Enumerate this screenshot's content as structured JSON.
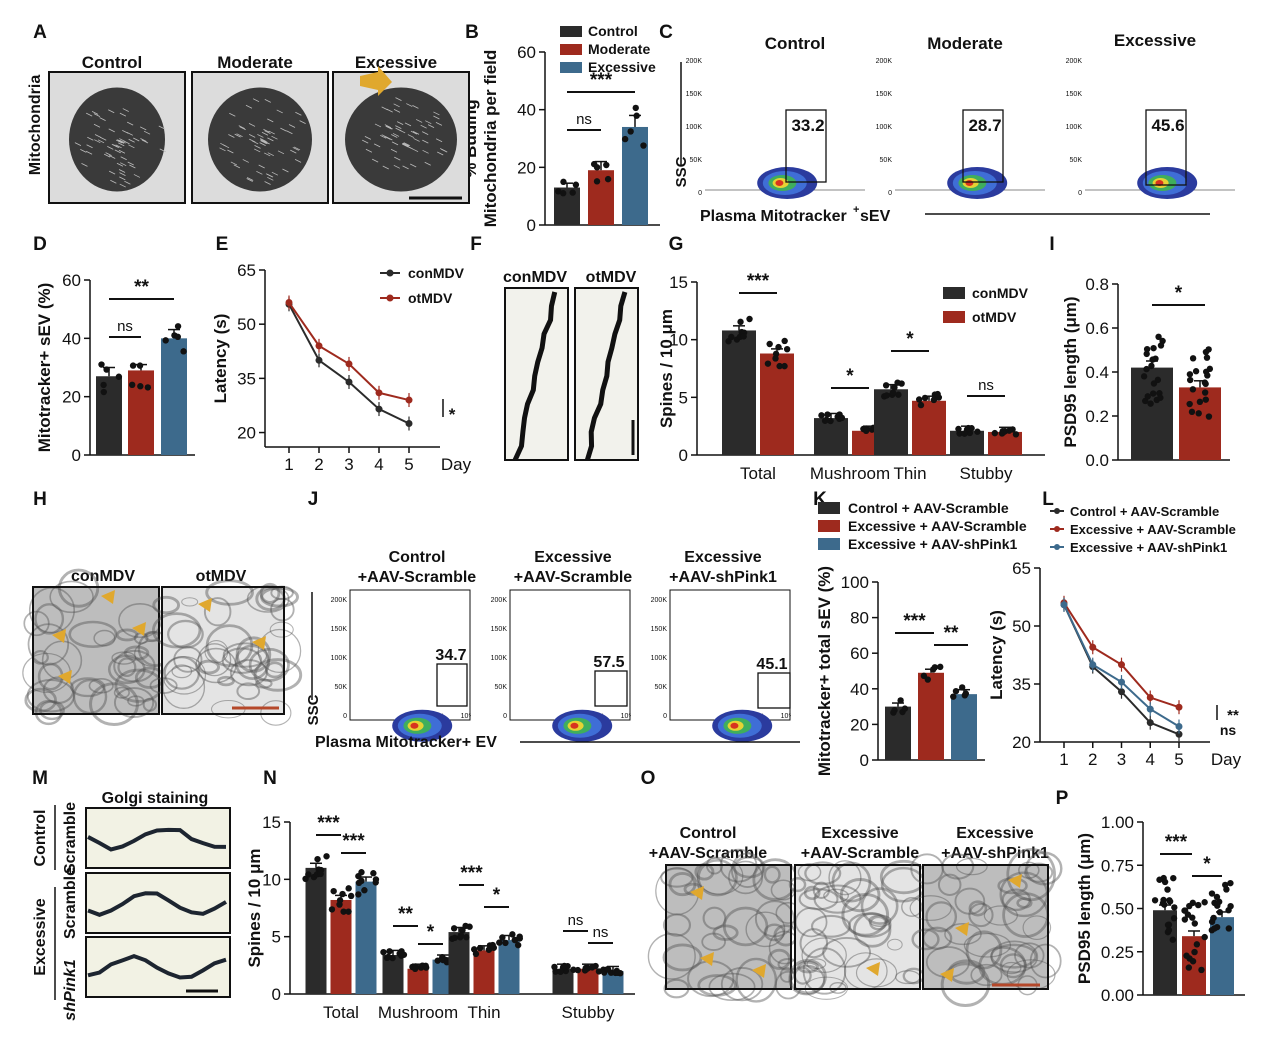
{
  "colors": {
    "control": "#2b2b2b",
    "moderate": "#9e2a1e",
    "excessive": "#3d6a8c",
    "em_bg": "#cfcfcf",
    "arrow": "#e0a82e",
    "scale": "#b5482a"
  },
  "panel_letters": {
    "A": "A",
    "B": "B",
    "C": "C",
    "D": "D",
    "E": "E",
    "F": "F",
    "G": "G",
    "H": "H",
    "I": "I",
    "J": "J",
    "K": "K",
    "L": "L",
    "M": "M",
    "N": "N",
    "O": "O",
    "P": "P"
  },
  "panelA": {
    "side_label": "Mitochondria",
    "titles": [
      "Control",
      "Moderate",
      "Excessive"
    ]
  },
  "panelC": {
    "titles": [
      "Control",
      "Moderate",
      "Excessive"
    ],
    "gate_values": [
      "33.2",
      "28.7",
      "45.6"
    ],
    "ylabel": "SSC",
    "xlabel": "Plasma Mitotracker",
    "xlabel_sup": "+",
    "xlabel_end": " sEV",
    "yticks": [
      "200K",
      "150K",
      "100K",
      "50K",
      "0"
    ]
  },
  "panelF": {
    "titles": [
      "conMDV",
      "otMDV"
    ]
  },
  "panelH": {
    "titles": [
      "conMDV",
      "otMDV"
    ]
  },
  "panelJ": {
    "titles": [
      [
        "Control",
        "+AAV-Scramble"
      ],
      [
        "Excessive",
        "+AAV-Scramble"
      ],
      [
        "Excessive",
        "+AAV-shPink1"
      ]
    ],
    "gate_values": [
      "34.7",
      "57.5",
      "45.1"
    ],
    "ylabel": "SSC",
    "xlabel": "Plasma Mitotracker+ EV",
    "yticks": [
      "200K",
      "150K",
      "100K",
      "50K",
      "0"
    ],
    "xticks": [
      "10³",
      "10⁴",
      "10⁵"
    ]
  },
  "panelM": {
    "title": "Golgi staining",
    "rows": [
      "Control Scramble",
      "Excessive Scramble",
      "shPink1"
    ],
    "group_labels": [
      "Control",
      "Excessive"
    ],
    "row_labels": [
      "Scramble",
      "Scramble",
      "shPink1"
    ]
  },
  "panelO": {
    "titles": [
      [
        "Control",
        "+AAV-Scramble"
      ],
      [
        "Excessive",
        "+AAV-Scramble"
      ],
      [
        "Excessive",
        "+AAV-shPink1"
      ]
    ]
  },
  "chart_data": [
    {
      "id": "B",
      "type": "bar",
      "title": "",
      "ylabel": "% Buding Mitochondria per field",
      "ylabel_lines": [
        "% Buding",
        "Mitochondria per field"
      ],
      "categories": [
        "Control",
        "Moderate",
        "Excessive"
      ],
      "values": [
        13,
        19,
        34
      ],
      "errors": [
        1.5,
        3,
        4
      ],
      "ylim": [
        0,
        60
      ],
      "yticks": [
        0,
        20,
        40,
        60
      ],
      "legend": [
        "Control",
        "Moderate",
        "Excessive"
      ],
      "legend_position": "top-right",
      "annotations": [
        {
          "text": "ns",
          "between": [
            "Control",
            "Moderate"
          ]
        },
        {
          "text": "***",
          "between": [
            "Control",
            "Excessive"
          ]
        }
      ]
    },
    {
      "id": "D",
      "type": "bar",
      "ylabel": "Mitotracker+ sEV (%)",
      "categories": [
        "Control",
        "Moderate",
        "Excessive"
      ],
      "values": [
        27,
        29,
        40
      ],
      "errors": [
        3,
        2,
        3
      ],
      "ylim": [
        0,
        60
      ],
      "yticks": [
        0,
        20,
        40,
        60
      ],
      "annotations": [
        {
          "text": "ns",
          "between": [
            "Control",
            "Moderate"
          ]
        },
        {
          "text": "**",
          "between": [
            "Control",
            "Excessive"
          ]
        }
      ]
    },
    {
      "id": "E",
      "type": "line",
      "ylabel": "Latency (s)",
      "xlabel": "Day",
      "x": [
        1,
        2,
        3,
        4,
        5
      ],
      "series": [
        {
          "name": "conMDV",
          "values": [
            55.5,
            40,
            34,
            26.5,
            22.5
          ]
        },
        {
          "name": "otMDV",
          "values": [
            56,
            44,
            39,
            31,
            29
          ]
        }
      ],
      "errors": [
        1,
        2,
        2,
        1.5,
        1.5
      ],
      "ylim": [
        16,
        65
      ],
      "yticks": [
        20,
        35,
        50,
        65
      ],
      "legend_position": "top-right",
      "annotations": [
        {
          "text": "*"
        }
      ]
    },
    {
      "id": "G",
      "type": "bar",
      "ylabel": "Spines / 10 μm",
      "categories": [
        "Total",
        "Mushroom",
        "Thin",
        "Stubby"
      ],
      "series": [
        {
          "name": "conMDV",
          "values": [
            10.8,
            3.2,
            5.7,
            2.1
          ]
        },
        {
          "name": "otMDV",
          "values": [
            8.8,
            2.1,
            4.7,
            2.0
          ]
        }
      ],
      "ylim": [
        0,
        15
      ],
      "yticks": [
        0,
        5,
        10,
        15
      ],
      "legend_position": "top-right",
      "annotations": [
        "***",
        "*",
        "*",
        "ns"
      ]
    },
    {
      "id": "I",
      "type": "bar",
      "ylabel": "PSD95 length (μm)",
      "categories": [
        "conMDV",
        "otMDV"
      ],
      "values": [
        0.42,
        0.33
      ],
      "errors": [
        0.03,
        0.03
      ],
      "ylim": [
        0,
        0.8
      ],
      "yticks": [
        "0.0",
        "0.2",
        "0.4",
        "0.6",
        "0.8"
      ],
      "annotations": [
        "*"
      ]
    },
    {
      "id": "K",
      "type": "bar",
      "ylabel": "Mitotracker+ total sEV (%)",
      "categories": [
        "Control + AAV-Scramble",
        "Excessive + AAV-Scramble",
        "Excessive + AAV-shPink1"
      ],
      "values": [
        30,
        49,
        37
      ],
      "errors": [
        2,
        2,
        2.5
      ],
      "ylim": [
        0,
        100
      ],
      "yticks": [
        0,
        20,
        40,
        60,
        80,
        100
      ],
      "legend": [
        "Control + AAV-Scramble",
        "Excessive + AAV-Scramble",
        "Excessive + AAV-shPink1"
      ],
      "legend_position": "top",
      "annotations": [
        "***",
        "**"
      ]
    },
    {
      "id": "L",
      "type": "line",
      "ylabel": "Latency (s)",
      "xlabel": "Day",
      "x": [
        1,
        2,
        3,
        4,
        5
      ],
      "series": [
        {
          "name": "Control + AAV-Scramble",
          "values": [
            55.5,
            39.5,
            33,
            25,
            22
          ]
        },
        {
          "name": "Excessive + AAV-Scramble",
          "values": [
            56,
            44.5,
            40,
            31.5,
            29
          ]
        },
        {
          "name": "Excessive + AAV-shPink1",
          "values": [
            55.5,
            40,
            35.5,
            28.5,
            24
          ]
        }
      ],
      "ylim": [
        20,
        65
      ],
      "yticks": [
        20,
        35,
        50,
        65
      ],
      "legend_position": "top",
      "annotations": [
        "**",
        "ns"
      ]
    },
    {
      "id": "N",
      "type": "bar",
      "ylabel": "Spines / 10 μm",
      "categories": [
        "Total",
        "Mushroom",
        "Thin",
        "Stubby"
      ],
      "series": [
        {
          "name": "Control + AAV-Scramble",
          "values": [
            11,
            3.4,
            5.4,
            2.2
          ]
        },
        {
          "name": "Excessive + AAV-Scramble",
          "values": [
            8.2,
            2.2,
            3.8,
            2.2
          ]
        },
        {
          "name": "Excessive + AAV-shPink1",
          "values": [
            9.8,
            3.0,
            4.7,
            2.0
          ]
        }
      ],
      "ylim": [
        0,
        15
      ],
      "yticks": [
        0,
        5,
        10,
        15
      ],
      "annotations": [
        [
          "***",
          "***"
        ],
        [
          "**",
          "*"
        ],
        [
          "***",
          "*"
        ],
        [
          "ns",
          "ns"
        ]
      ]
    },
    {
      "id": "P",
      "type": "bar",
      "ylabel": "PSD95 length (μm)",
      "categories": [
        "Control + AAV-Scramble",
        "Excessive + AAV-Scramble",
        "Excessive + AAV-shPink1"
      ],
      "values": [
        0.49,
        0.34,
        0.45
      ],
      "errors": [
        0.03,
        0.03,
        0.03
      ],
      "ylim": [
        0,
        1
      ],
      "yticks": [
        "0.00",
        "0.25",
        "0.50",
        "0.75",
        "1.00"
      ],
      "annotations": [
        "***",
        "*"
      ]
    }
  ]
}
